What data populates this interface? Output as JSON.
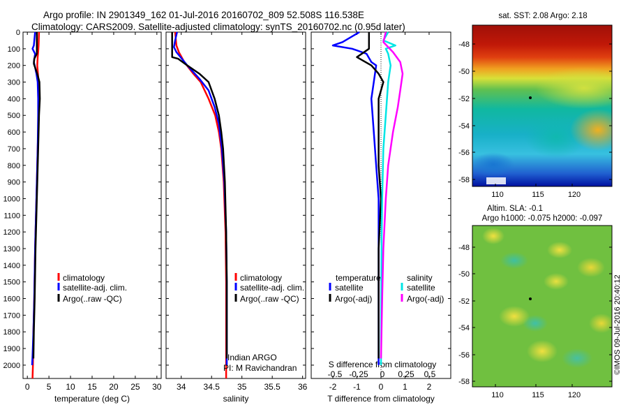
{
  "header": {
    "line1": "Argo profile: IN 2901349_162 01-Jul-2016 20160702_809 52.508S 116.538E",
    "line2": "Climatology: CARS2009. Satellite-adjusted climatology: synTS_20160702.nc (0.95d later)"
  },
  "colors": {
    "climatology": "#ff0000",
    "satellite": "#0000ff",
    "argo": "#000000",
    "satellite_salinity": "#00e5e5",
    "argo_salinity": "#ff00ff"
  },
  "chart_data": [
    {
      "type": "line",
      "xlabel": "temperature (deg C)",
      "xticks": [
        "0",
        "5",
        "10",
        "15",
        "20",
        "25",
        "30"
      ],
      "xlim": [
        -1,
        31
      ],
      "ylim": [
        2080,
        0
      ],
      "yticks": [
        "0",
        "100",
        "200",
        "300",
        "400",
        "500",
        "600",
        "700",
        "800",
        "900",
        "1000",
        "1100",
        "1200",
        "1300",
        "1400",
        "1500",
        "1600",
        "1700",
        "1800",
        "1900",
        "2000"
      ],
      "legend": [
        "climatology",
        "satellite-adj. clim.",
        "Argo(..raw -QC)"
      ],
      "series": [
        {
          "name": "climatology",
          "color": "climatology",
          "points": [
            [
              2.7,
              0
            ],
            [
              2.6,
              80
            ],
            [
              2.5,
              120
            ],
            [
              2.4,
              150
            ],
            [
              2.3,
              200
            ],
            [
              2.6,
              300
            ],
            [
              2.6,
              500
            ],
            [
              2.4,
              700
            ],
            [
              2.1,
              1000
            ],
            [
              1.8,
              1300
            ],
            [
              1.6,
              1600
            ],
            [
              1.4,
              1800
            ],
            [
              1.3,
              2000
            ],
            [
              1.2,
              2080
            ]
          ]
        },
        {
          "name": "satellite-adj. clim.",
          "color": "satellite",
          "points": [
            [
              1.8,
              0
            ],
            [
              1.5,
              80
            ],
            [
              1.2,
              100
            ],
            [
              1.8,
              130
            ],
            [
              1.5,
              180
            ],
            [
              1.7,
              200
            ],
            [
              2.1,
              250
            ],
            [
              2.4,
              300
            ],
            [
              2.5,
              400
            ],
            [
              2.5,
              500
            ],
            [
              2.4,
              700
            ],
            [
              2.1,
              1000
            ],
            [
              1.8,
              1300
            ],
            [
              1.6,
              1600
            ],
            [
              1.4,
              1800
            ],
            [
              1.2,
              1950
            ],
            [
              1.1,
              2000
            ]
          ]
        },
        {
          "name": "Argo(..raw -QC)",
          "color": "argo",
          "points": [
            [
              2.2,
              0
            ],
            [
              2.2,
              130
            ],
            [
              1.6,
              160
            ],
            [
              1.5,
              190
            ],
            [
              2.3,
              250
            ],
            [
              2.8,
              300
            ],
            [
              2.9,
              400
            ],
            [
              2.7,
              500
            ],
            [
              2.5,
              700
            ],
            [
              2.2,
              1000
            ],
            [
              1.9,
              1300
            ],
            [
              1.7,
              1600
            ],
            [
              1.5,
              1800
            ],
            [
              1.4,
              1960
            ]
          ]
        }
      ]
    },
    {
      "type": "line",
      "xlabel": "salinity",
      "xticks": [
        "34",
        "34.5",
        "35",
        "35.5",
        "36"
      ],
      "xlim": [
        33.75,
        36.05
      ],
      "ylim": [
        2080,
        0
      ],
      "legend": [
        "climatology",
        "satellite-adj. clim.",
        "Argo(..raw -QC)"
      ],
      "annotation": [
        "Indian ARGO",
        "PI: M Ravichandran"
      ],
      "series": [
        {
          "name": "climatology",
          "color": "climatology",
          "points": [
            [
              33.9,
              0
            ],
            [
              33.92,
              80
            ],
            [
              33.96,
              120
            ],
            [
              34.05,
              180
            ],
            [
              34.2,
              250
            ],
            [
              34.32,
              300
            ],
            [
              34.45,
              400
            ],
            [
              34.56,
              500
            ],
            [
              34.62,
              600
            ],
            [
              34.66,
              700
            ],
            [
              34.7,
              900
            ],
            [
              34.73,
              1200
            ],
            [
              34.74,
              1500
            ],
            [
              34.74,
              2080
            ]
          ]
        },
        {
          "name": "satellite-adj. clim.",
          "color": "satellite",
          "points": [
            [
              33.93,
              0
            ],
            [
              33.9,
              50
            ],
            [
              33.88,
              90
            ],
            [
              33.92,
              120
            ],
            [
              34.1,
              200
            ],
            [
              34.3,
              280
            ],
            [
              34.45,
              350
            ],
            [
              34.55,
              450
            ],
            [
              34.62,
              550
            ],
            [
              34.67,
              700
            ],
            [
              34.71,
              900
            ],
            [
              34.74,
              1200
            ],
            [
              34.75,
              1500
            ],
            [
              34.75,
              2000
            ]
          ]
        },
        {
          "name": "Argo(..raw -QC)",
          "color": "argo",
          "points": [
            [
              33.85,
              0
            ],
            [
              33.85,
              150
            ],
            [
              33.95,
              160
            ],
            [
              34.1,
              200
            ],
            [
              34.3,
              250
            ],
            [
              34.45,
              300
            ],
            [
              34.55,
              400
            ],
            [
              34.62,
              500
            ],
            [
              34.66,
              600
            ],
            [
              34.69,
              700
            ],
            [
              34.72,
              900
            ],
            [
              34.74,
              1200
            ],
            [
              34.75,
              1500
            ],
            [
              34.75,
              1960
            ]
          ]
        }
      ]
    },
    {
      "type": "line",
      "xlabel": "T difference from climatology",
      "xticks": [
        "-2",
        "-1",
        "0",
        "1",
        "2"
      ],
      "xlim": [
        -2.9,
        2.9
      ],
      "top_axis_label": "S difference from climatology",
      "top_ticks": [
        "-0.5",
        "-0.25",
        "0",
        "0.25",
        "0.5"
      ],
      "ylim": [
        2080,
        0
      ],
      "legend_headers": [
        "temperature",
        "salinity"
      ],
      "legend": [
        "satellite",
        "Argo(-adj)",
        "satellite",
        "Argo(-adj)"
      ],
      "series": [
        {
          "name": "satellite",
          "color": "satellite",
          "points": [
            [
              -0.9,
              0
            ],
            [
              -1.6,
              60
            ],
            [
              -2.0,
              80
            ],
            [
              -1.2,
              100
            ],
            [
              -0.6,
              130
            ],
            [
              -0.4,
              180
            ],
            [
              -0.2,
              200
            ],
            [
              -0.3,
              300
            ],
            [
              -0.4,
              400
            ],
            [
              -0.3,
              600
            ],
            [
              -0.2,
              800
            ],
            [
              -0.1,
              1000
            ],
            [
              -0.1,
              1300
            ],
            [
              -0.1,
              1600
            ],
            [
              -0.1,
              2000
            ]
          ]
        },
        {
          "name": "Argo(-adj)",
          "color": "argo",
          "points": [
            [
              -0.5,
              0
            ],
            [
              -0.5,
              100
            ],
            [
              -1.0,
              150
            ],
            [
              -0.4,
              200
            ],
            [
              -0.1,
              250
            ],
            [
              0.1,
              300
            ],
            [
              -0.1,
              400
            ],
            [
              -0.1,
              600
            ],
            [
              -0.1,
              800
            ],
            [
              0.0,
              1000
            ],
            [
              -0.1,
              1300
            ],
            [
              -0.1,
              1600
            ],
            [
              -0.1,
              1960
            ]
          ]
        },
        {
          "name": "satellite",
          "color": "satellite_salinity",
          "points": [
            [
              0.3,
              0
            ],
            [
              0.1,
              50
            ],
            [
              0.6,
              80
            ],
            [
              0.2,
              100
            ],
            [
              0.3,
              130
            ],
            [
              0.4,
              200
            ],
            [
              0.3,
              300
            ],
            [
              0.2,
              500
            ],
            [
              0.1,
              700
            ],
            [
              0.05,
              1000
            ],
            [
              0.02,
              1300
            ],
            [
              0.01,
              1600
            ],
            [
              0.0,
              2000
            ]
          ]
        },
        {
          "name": "Argo(-adj)",
          "color": "argo_salinity",
          "points": [
            [
              0.2,
              0
            ],
            [
              0.1,
              60
            ],
            [
              0.5,
              120
            ],
            [
              0.8,
              180
            ],
            [
              0.9,
              250
            ],
            [
              0.8,
              350
            ],
            [
              0.7,
              450
            ],
            [
              0.5,
              600
            ],
            [
              0.3,
              800
            ],
            [
              0.2,
              1000
            ],
            [
              0.1,
              1300
            ],
            [
              0.05,
              1600
            ],
            [
              0.0,
              1960
            ]
          ]
        }
      ]
    }
  ],
  "maps": {
    "sst": {
      "title": "sat. SST: 2.08 Argo: 2.18",
      "xticks": [
        "110",
        "115",
        "120"
      ],
      "yticks": [
        "-48",
        "-50",
        "-52",
        "-54",
        "-56",
        "-58"
      ]
    },
    "sla": {
      "title1": "Altim. SLA: -0.1",
      "title2": "Argo h1000: -0.075 h2000: -0.097",
      "xticks": [
        "110",
        "115",
        "120"
      ],
      "yticks": [
        "-48",
        "-50",
        "-52",
        "-54",
        "-56",
        "-58"
      ]
    }
  },
  "footer": {
    "credit": "©IMOS 09-Jul-2016 20:40:12"
  }
}
